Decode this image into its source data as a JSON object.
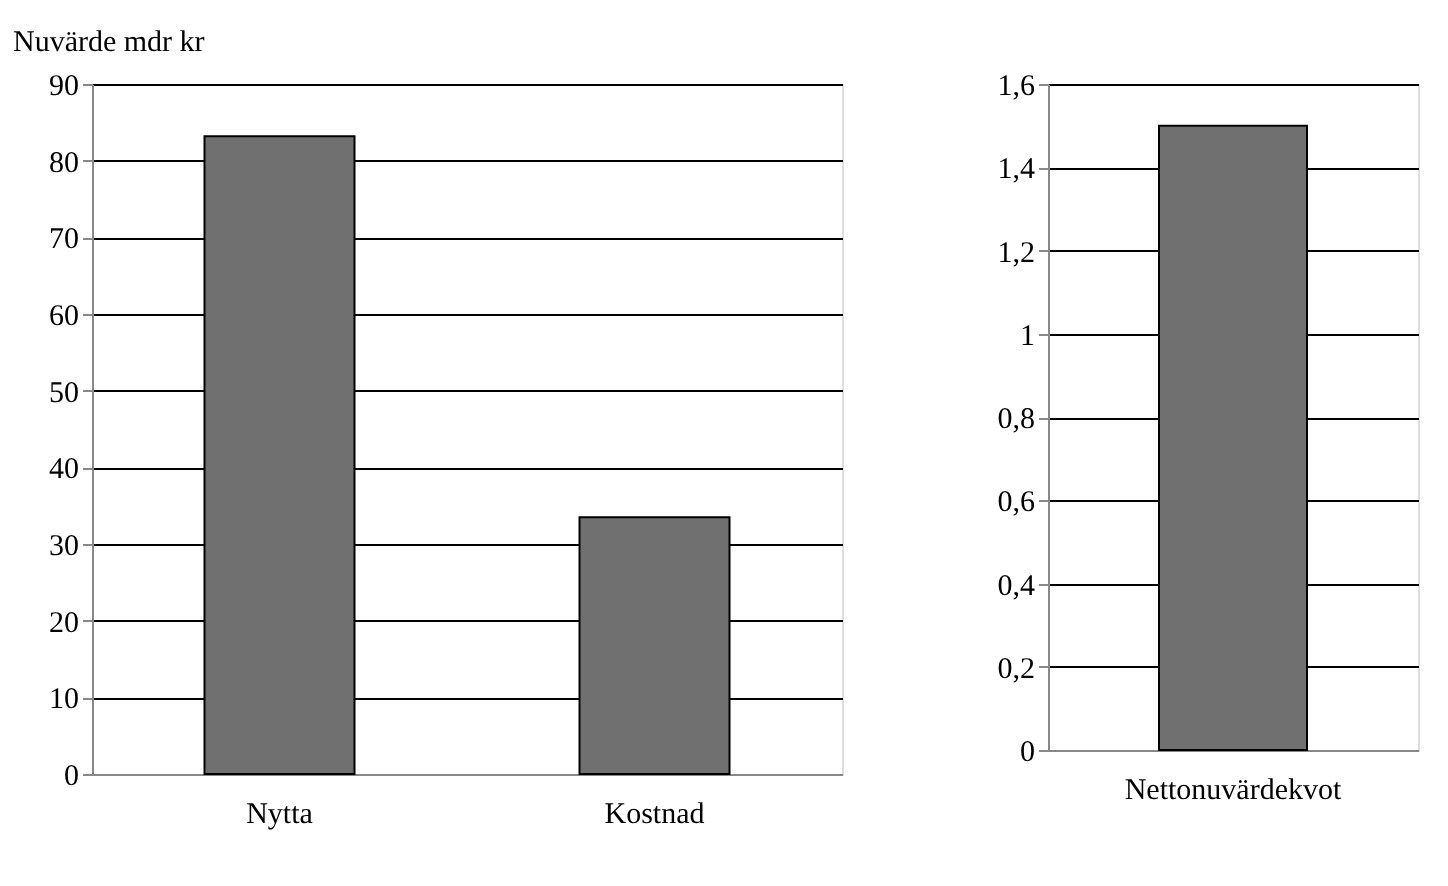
{
  "chart_data": [
    {
      "type": "bar",
      "ylabel": "Nuvärde mdr kr",
      "categories": [
        "Nytta",
        "Kostnad"
      ],
      "values": [
        83.2,
        33.5
      ],
      "color": "#707070",
      "ylim": [
        0,
        90
      ],
      "yticks": [
        0,
        10,
        20,
        30,
        40,
        50,
        60,
        70,
        80,
        90
      ],
      "grid": "y"
    },
    {
      "type": "bar",
      "categories": [
        "Nettonuvärdekvot"
      ],
      "values": [
        1.5
      ],
      "color": "#707070",
      "ylim": [
        0,
        1.6
      ],
      "yticks": [
        0,
        {
          "value": 0.2,
          "label": "0,2"
        },
        {
          "value": 0.4,
          "label": "0,4"
        },
        {
          "value": 0.6,
          "label": "0,6"
        },
        {
          "value": 0.8,
          "label": "0,8"
        },
        1,
        {
          "value": 1.2,
          "label": "1,2"
        },
        {
          "value": 1.4,
          "label": "1,4"
        },
        {
          "value": 1.6,
          "label": "1,6"
        }
      ],
      "grid": "y"
    }
  ]
}
